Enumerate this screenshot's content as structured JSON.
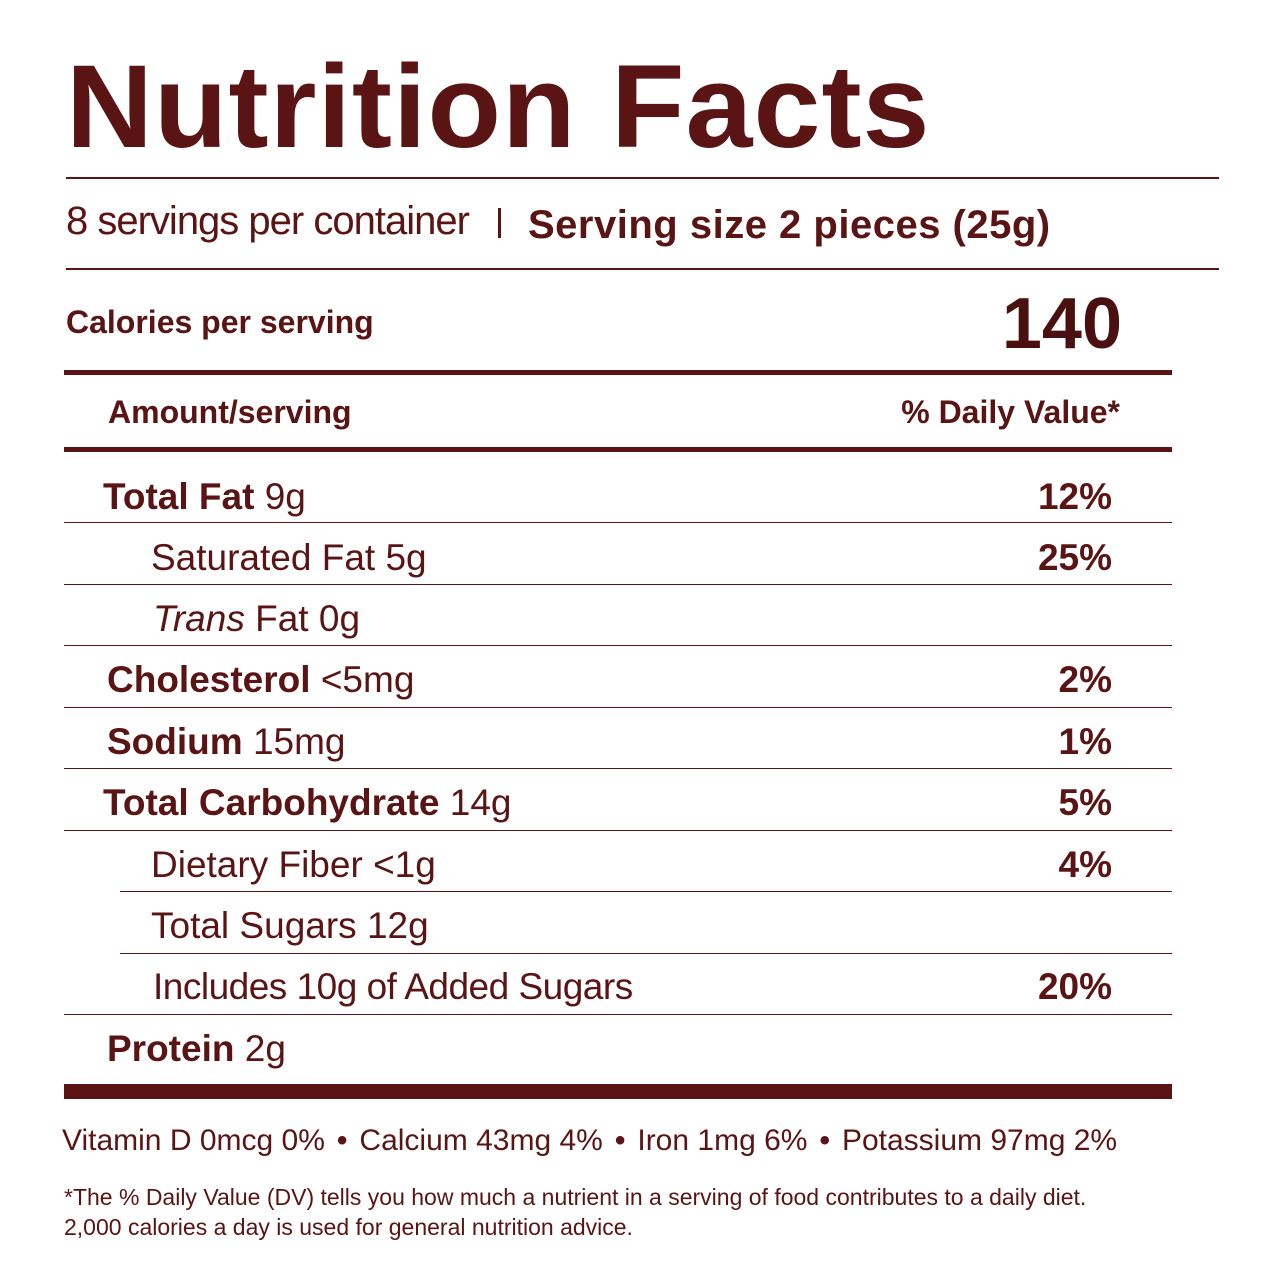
{
  "title": "Nutrition Facts",
  "servings_per_container": "8 servings per container",
  "serving_size": "Serving size 2 pieces (25g)",
  "calories_label": "Calories per serving",
  "calories_value": "140",
  "amount_header": "Amount/serving",
  "dv_header": "% Daily Value*",
  "nutrients": [
    {
      "name": "Total Fat",
      "amount": "9g",
      "dv": "12%"
    },
    {
      "name": "Saturated Fat",
      "amount": "5g",
      "dv": "25%"
    },
    {
      "name_italic": "Trans",
      "name": "Fat",
      "amount": "0g",
      "dv": ""
    },
    {
      "name": "Cholesterol",
      "amount": "<5mg",
      "dv": "2%"
    },
    {
      "name": "Sodium",
      "amount": "15mg",
      "dv": "1%"
    },
    {
      "name": "Total Carbohydrate",
      "amount": "14g",
      "dv": "5%"
    },
    {
      "name": "Dietary Fiber",
      "amount": "<1g",
      "dv": "4%"
    },
    {
      "name": "Total Sugars",
      "amount": "12g",
      "dv": ""
    },
    {
      "name": "Includes 10g of Added Sugars",
      "amount": "",
      "dv": "20%"
    },
    {
      "name": "Protein",
      "amount": "2g",
      "dv": ""
    }
  ],
  "vitamins": [
    "Vitamin D 0mcg 0%",
    "Calcium 43mg 4%",
    "Iron 1mg 6%",
    "Potassium 97mg 2%"
  ],
  "vitamin_separator": "•",
  "footnote_line1": "*The % Daily Value (DV) tells you how much a nutrient in a serving of food contributes to a daily diet.",
  "footnote_line2": "2,000 calories a day is used for general nutrition advice.",
  "colors": {
    "text": "#5a1414",
    "rule": "#5a1414"
  }
}
